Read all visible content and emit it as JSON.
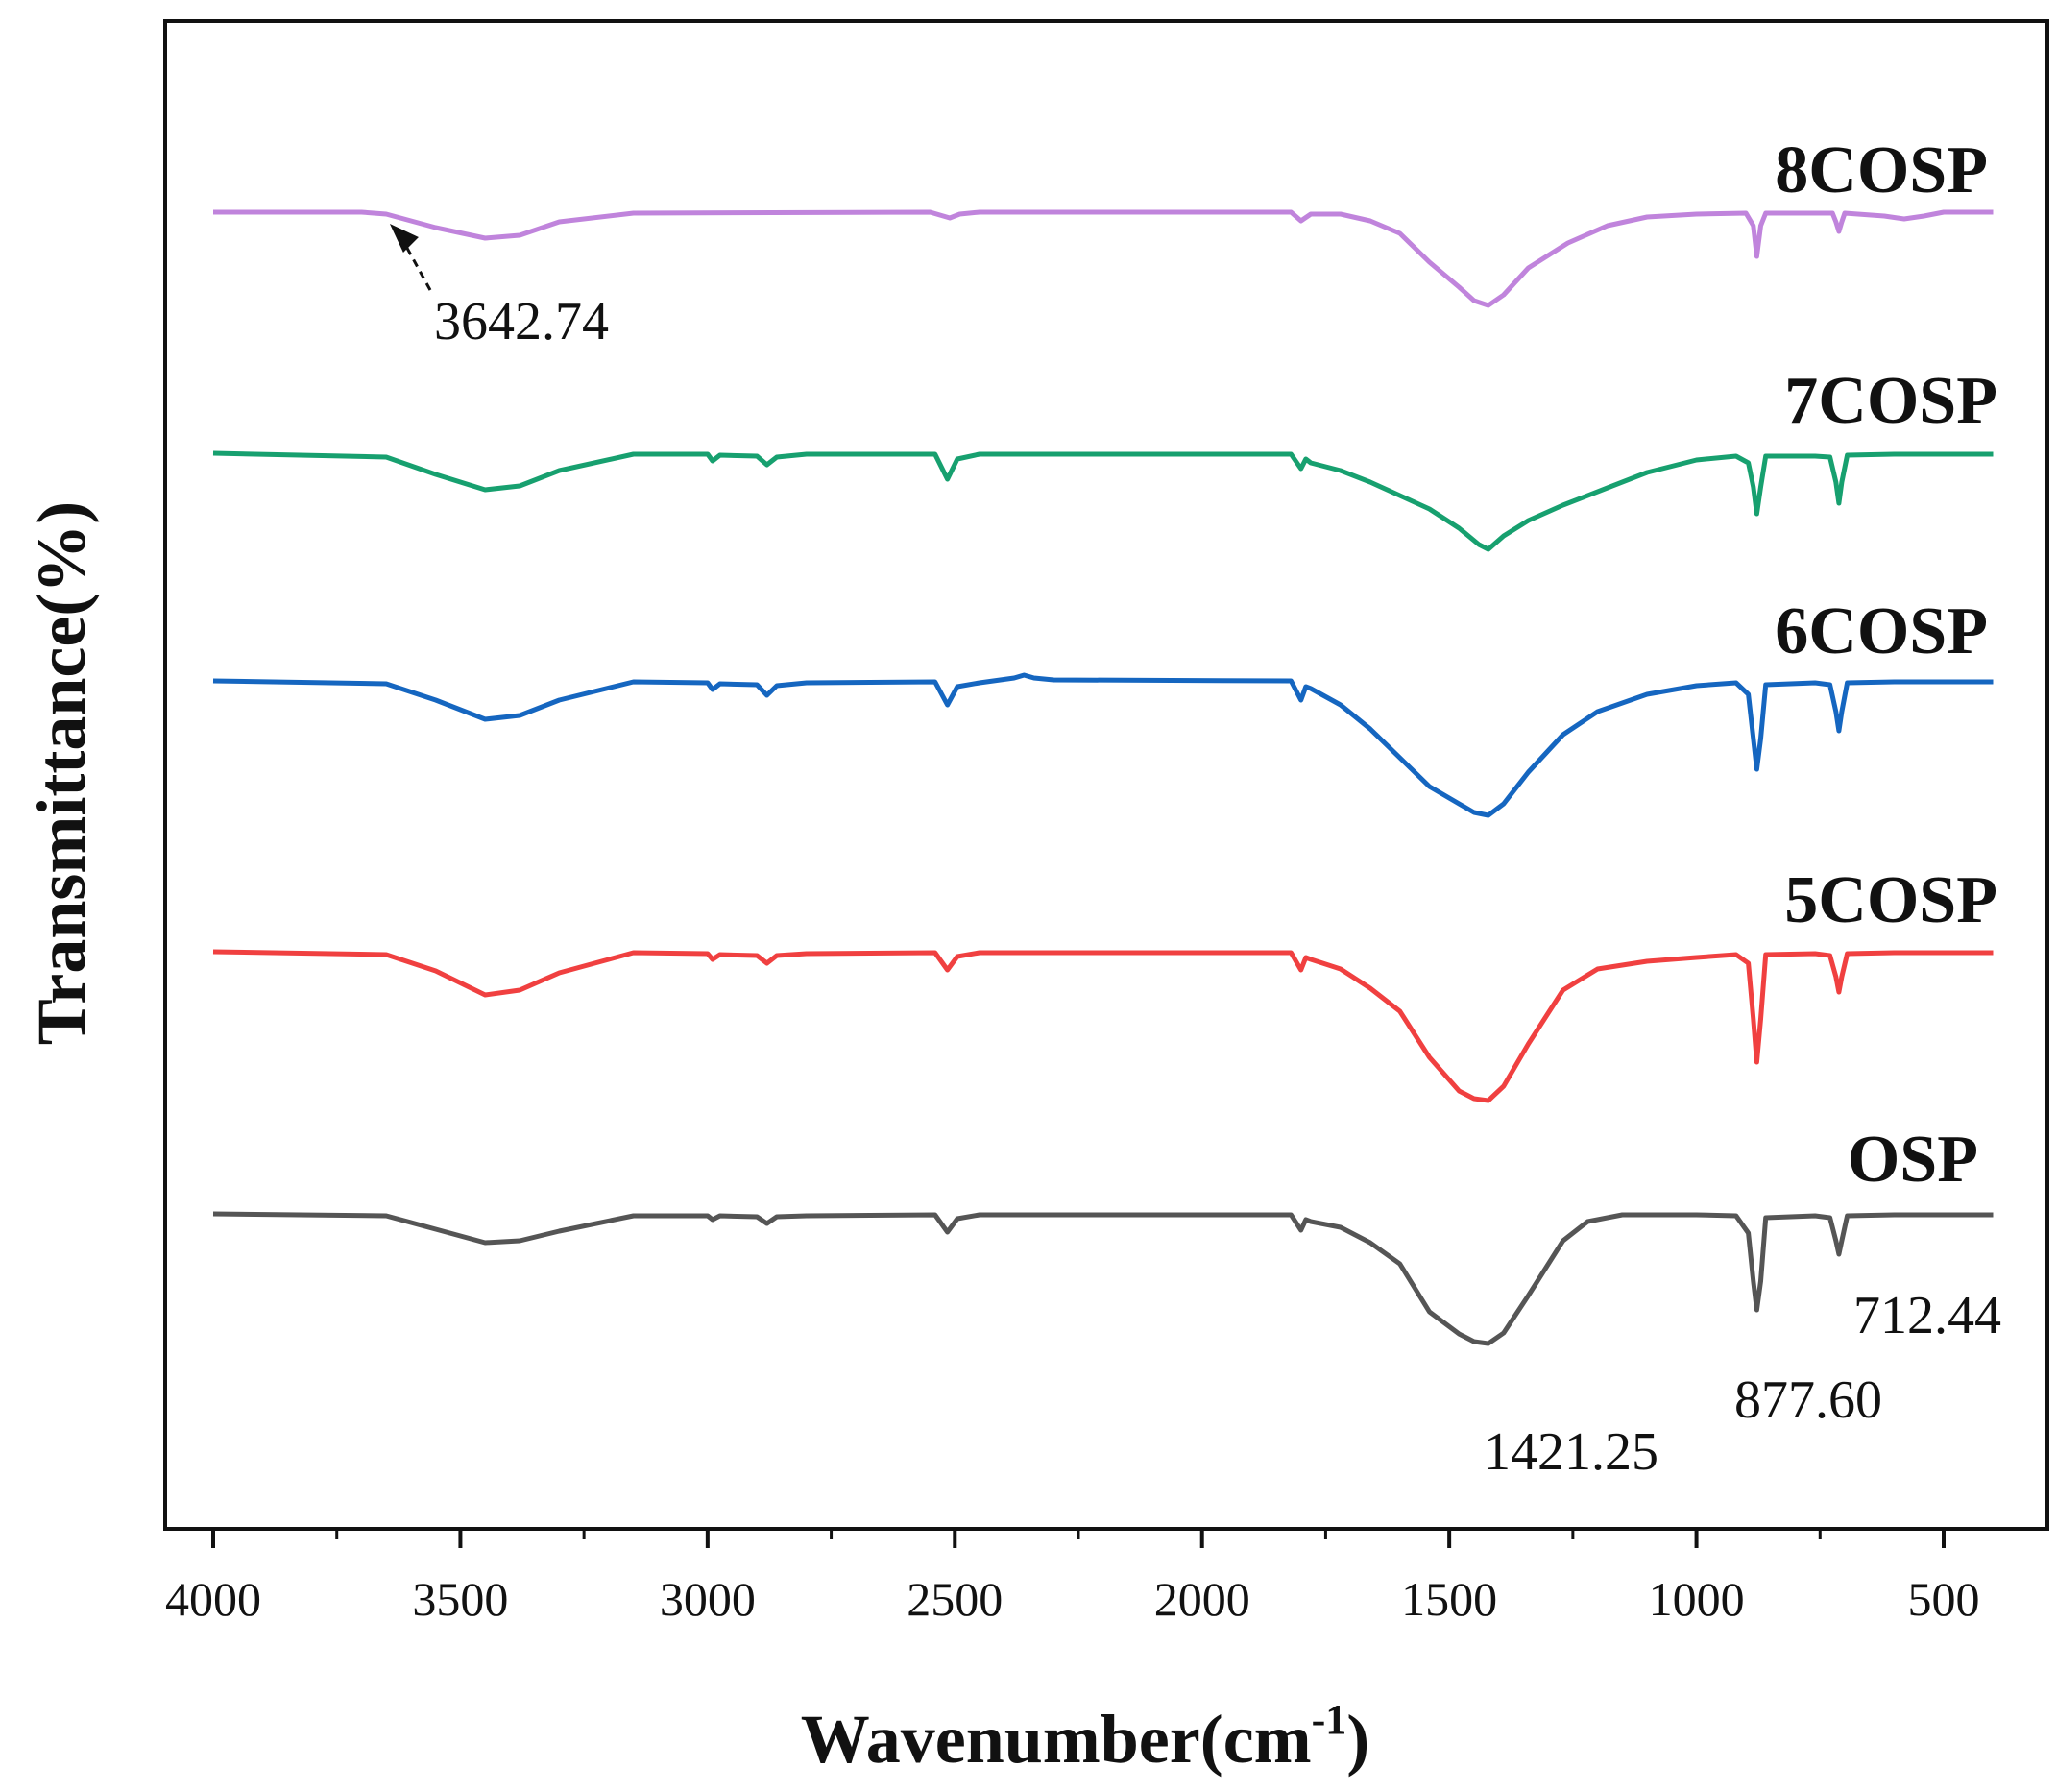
{
  "chart_data": {
    "type": "line",
    "title": "",
    "xlabel": "Wavenumber(cm",
    "xlabel_superscript": "-1",
    "xlabel_suffix": ")",
    "ylabel": "Transmittance(%)",
    "xlim": [
      4000,
      400
    ],
    "x_reversed": true,
    "grid": false,
    "legend": "none (labels placed beside curves)",
    "x_ticks": [
      4000,
      3500,
      3000,
      2500,
      2000,
      1500,
      1000,
      500
    ],
    "x_tick_labels": [
      "4000",
      "3500",
      "3000",
      "2500",
      "2000",
      "1500",
      "1000",
      "500"
    ],
    "y_units": "relative transmittance (offset, 0 = baseline, negative = absorption)",
    "series": [
      {
        "name": "8COSP",
        "color": "#c084dc",
        "points": [
          [
            4000,
            0
          ],
          [
            3700,
            0
          ],
          [
            3650,
            -2
          ],
          [
            3550,
            -16
          ],
          [
            3450,
            -27
          ],
          [
            3380,
            -24
          ],
          [
            3300,
            -10
          ],
          [
            3150,
            -1
          ],
          [
            2550,
            0
          ],
          [
            2510,
            -6
          ],
          [
            2490,
            -2
          ],
          [
            2450,
            0
          ],
          [
            1820,
            0
          ],
          [
            1800,
            -9
          ],
          [
            1780,
            -2
          ],
          [
            1720,
            -2
          ],
          [
            1660,
            -9
          ],
          [
            1600,
            -22
          ],
          [
            1540,
            -52
          ],
          [
            1480,
            -78
          ],
          [
            1450,
            -92
          ],
          [
            1421,
            -97
          ],
          [
            1390,
            -86
          ],
          [
            1340,
            -58
          ],
          [
            1260,
            -32
          ],
          [
            1180,
            -14
          ],
          [
            1100,
            -5
          ],
          [
            1000,
            -2
          ],
          [
            900,
            -1
          ],
          [
            885,
            -14
          ],
          [
            878,
            -46
          ],
          [
            870,
            -14
          ],
          [
            860,
            -1
          ],
          [
            725,
            -1
          ],
          [
            718,
            -10
          ],
          [
            712,
            -20
          ],
          [
            706,
            -10
          ],
          [
            700,
            -1
          ],
          [
            620,
            -4
          ],
          [
            580,
            -7
          ],
          [
            540,
            -4
          ],
          [
            500,
            0
          ],
          [
            400,
            0
          ]
        ],
        "annotations": [
          {
            "label": "3642.74",
            "x": 3642.74
          }
        ]
      },
      {
        "name": "7COSP",
        "color": "#17a06f",
        "points": [
          [
            4000,
            0
          ],
          [
            3650,
            -4
          ],
          [
            3550,
            -22
          ],
          [
            3450,
            -38
          ],
          [
            3380,
            -34
          ],
          [
            3300,
            -18
          ],
          [
            3150,
            -1
          ],
          [
            3000,
            -1
          ],
          [
            2990,
            -8
          ],
          [
            2975,
            -2
          ],
          [
            2900,
            -3
          ],
          [
            2880,
            -12
          ],
          [
            2860,
            -4
          ],
          [
            2800,
            -1
          ],
          [
            2540,
            -1
          ],
          [
            2515,
            -27
          ],
          [
            2495,
            -6
          ],
          [
            2450,
            -1
          ],
          [
            1820,
            -1
          ],
          [
            1800,
            -16
          ],
          [
            1790,
            -6
          ],
          [
            1780,
            -10
          ],
          [
            1720,
            -18
          ],
          [
            1660,
            -30
          ],
          [
            1600,
            -44
          ],
          [
            1540,
            -58
          ],
          [
            1480,
            -78
          ],
          [
            1440,
            -95
          ],
          [
            1421,
            -100
          ],
          [
            1390,
            -86
          ],
          [
            1340,
            -70
          ],
          [
            1270,
            -54
          ],
          [
            1180,
            -36
          ],
          [
            1100,
            -20
          ],
          [
            1000,
            -7
          ],
          [
            920,
            -3
          ],
          [
            895,
            -10
          ],
          [
            885,
            -35
          ],
          [
            878,
            -63
          ],
          [
            870,
            -35
          ],
          [
            860,
            -3
          ],
          [
            760,
            -3
          ],
          [
            730,
            -4
          ],
          [
            718,
            -30
          ],
          [
            712,
            -52
          ],
          [
            706,
            -30
          ],
          [
            695,
            -2
          ],
          [
            600,
            -1
          ],
          [
            400,
            -1
          ]
        ],
        "annotations": []
      },
      {
        "name": "6COSP",
        "color": "#1566c0",
        "points": [
          [
            4000,
            0
          ],
          [
            3650,
            -3
          ],
          [
            3550,
            -20
          ],
          [
            3450,
            -40
          ],
          [
            3380,
            -36
          ],
          [
            3300,
            -20
          ],
          [
            3150,
            -1
          ],
          [
            3000,
            -2
          ],
          [
            2990,
            -9
          ],
          [
            2975,
            -3
          ],
          [
            2900,
            -4
          ],
          [
            2880,
            -15
          ],
          [
            2860,
            -5
          ],
          [
            2800,
            -2
          ],
          [
            2540,
            -1
          ],
          [
            2515,
            -25
          ],
          [
            2495,
            -6
          ],
          [
            2450,
            -2
          ],
          [
            2380,
            3
          ],
          [
            2360,
            6
          ],
          [
            2340,
            3
          ],
          [
            2300,
            1
          ],
          [
            1820,
            0
          ],
          [
            1800,
            -20
          ],
          [
            1790,
            -6
          ],
          [
            1780,
            -8
          ],
          [
            1720,
            -25
          ],
          [
            1660,
            -50
          ],
          [
            1600,
            -80
          ],
          [
            1540,
            -110
          ],
          [
            1480,
            -128
          ],
          [
            1450,
            -137
          ],
          [
            1421,
            -140
          ],
          [
            1390,
            -128
          ],
          [
            1340,
            -95
          ],
          [
            1270,
            -56
          ],
          [
            1200,
            -32
          ],
          [
            1100,
            -14
          ],
          [
            1000,
            -5
          ],
          [
            920,
            -2
          ],
          [
            895,
            -14
          ],
          [
            885,
            -60
          ],
          [
            878,
            -92
          ],
          [
            870,
            -60
          ],
          [
            860,
            -4
          ],
          [
            760,
            -2
          ],
          [
            730,
            -4
          ],
          [
            718,
            -32
          ],
          [
            712,
            -52
          ],
          [
            706,
            -32
          ],
          [
            695,
            -2
          ],
          [
            600,
            -1
          ],
          [
            400,
            -1
          ]
        ],
        "annotations": []
      },
      {
        "name": "5COSP",
        "color": "#f04040",
        "points": [
          [
            4000,
            0
          ],
          [
            3650,
            -3
          ],
          [
            3550,
            -20
          ],
          [
            3450,
            -45
          ],
          [
            3380,
            -40
          ],
          [
            3300,
            -22
          ],
          [
            3150,
            -1
          ],
          [
            3000,
            -2
          ],
          [
            2990,
            -8
          ],
          [
            2975,
            -3
          ],
          [
            2900,
            -4
          ],
          [
            2880,
            -12
          ],
          [
            2860,
            -4
          ],
          [
            2800,
            -2
          ],
          [
            2540,
            -1
          ],
          [
            2515,
            -19
          ],
          [
            2495,
            -5
          ],
          [
            2450,
            -1
          ],
          [
            1820,
            -1
          ],
          [
            1800,
            -19
          ],
          [
            1790,
            -6
          ],
          [
            1780,
            -8
          ],
          [
            1720,
            -18
          ],
          [
            1660,
            -38
          ],
          [
            1600,
            -62
          ],
          [
            1540,
            -110
          ],
          [
            1480,
            -145
          ],
          [
            1450,
            -153
          ],
          [
            1421,
            -155
          ],
          [
            1390,
            -140
          ],
          [
            1340,
            -96
          ],
          [
            1270,
            -40
          ],
          [
            1200,
            -18
          ],
          [
            1100,
            -10
          ],
          [
            1000,
            -6
          ],
          [
            920,
            -3
          ],
          [
            895,
            -12
          ],
          [
            885,
            -70
          ],
          [
            878,
            -115
          ],
          [
            870,
            -70
          ],
          [
            860,
            -3
          ],
          [
            760,
            -2
          ],
          [
            730,
            -4
          ],
          [
            718,
            -26
          ],
          [
            712,
            -42
          ],
          [
            706,
            -26
          ],
          [
            695,
            -2
          ],
          [
            600,
            -1
          ],
          [
            400,
            -1
          ]
        ],
        "annotations": []
      },
      {
        "name": "OSP",
        "color": "#555555",
        "points": [
          [
            4000,
            0
          ],
          [
            3650,
            -2
          ],
          [
            3550,
            -16
          ],
          [
            3450,
            -30
          ],
          [
            3380,
            -28
          ],
          [
            3300,
            -18
          ],
          [
            3150,
            -2
          ],
          [
            3000,
            -2
          ],
          [
            2990,
            -6
          ],
          [
            2975,
            -2
          ],
          [
            2900,
            -3
          ],
          [
            2880,
            -10
          ],
          [
            2860,
            -3
          ],
          [
            2800,
            -2
          ],
          [
            2540,
            -1
          ],
          [
            2515,
            -19
          ],
          [
            2495,
            -5
          ],
          [
            2450,
            -1
          ],
          [
            1820,
            -1
          ],
          [
            1800,
            -17
          ],
          [
            1790,
            -6
          ],
          [
            1780,
            -8
          ],
          [
            1720,
            -14
          ],
          [
            1660,
            -30
          ],
          [
            1600,
            -52
          ],
          [
            1540,
            -102
          ],
          [
            1480,
            -125
          ],
          [
            1450,
            -133
          ],
          [
            1421,
            -135
          ],
          [
            1390,
            -124
          ],
          [
            1340,
            -85
          ],
          [
            1270,
            -28
          ],
          [
            1220,
            -8
          ],
          [
            1150,
            -1
          ],
          [
            1000,
            -1
          ],
          [
            920,
            -2
          ],
          [
            895,
            -20
          ],
          [
            885,
            -70
          ],
          [
            878,
            -100
          ],
          [
            870,
            -70
          ],
          [
            860,
            -4
          ],
          [
            760,
            -2
          ],
          [
            730,
            -4
          ],
          [
            718,
            -28
          ],
          [
            712,
            -42
          ],
          [
            706,
            -28
          ],
          [
            695,
            -2
          ],
          [
            600,
            -1
          ],
          [
            400,
            -1
          ]
        ],
        "annotations": [
          {
            "label": "1421.25",
            "x": 1421.25
          },
          {
            "label": "877.60",
            "x": 877.6
          },
          {
            "label": "712.44",
            "x": 712.44
          }
        ]
      }
    ]
  }
}
